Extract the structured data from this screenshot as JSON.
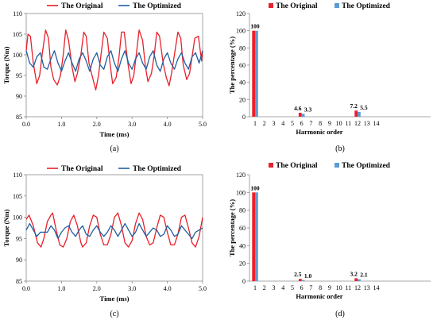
{
  "colors": {
    "original": "#e8202a",
    "optimized": "#1f5f9e",
    "bar_original": "#e8202a",
    "bar_optimized": "#5b9bd5"
  },
  "chart_data": [
    {
      "id": "a",
      "panel_label": "(a)",
      "type": "line",
      "xlabel": "Time (ms)",
      "ylabel": "Torque (Nm)",
      "xlim": [
        0,
        5
      ],
      "ylim": [
        85,
        110
      ],
      "xticks": [
        "0.0",
        "1.0",
        "2.0",
        "3.0",
        "4.0",
        "5.0"
      ],
      "yticks": [
        "85",
        "90",
        "95",
        "100",
        "105",
        "110"
      ],
      "legend": "top",
      "grid": false,
      "series": [
        {
          "name": "The Original",
          "color_key": "original",
          "x": [
            0,
            0.05,
            0.12,
            0.2,
            0.3,
            0.38,
            0.45,
            0.55,
            0.63,
            0.7,
            0.78,
            0.88,
            0.97,
            1.05,
            1.12,
            1.2,
            1.3,
            1.38,
            1.45,
            1.55,
            1.63,
            1.7,
            1.78,
            1.88,
            1.97,
            2.05,
            2.12,
            2.2,
            2.3,
            2.38,
            2.45,
            2.55,
            2.63,
            2.7,
            2.78,
            2.88,
            2.97,
            3.05,
            3.12,
            3.2,
            3.3,
            3.38,
            3.45,
            3.55,
            3.63,
            3.7,
            3.78,
            3.88,
            3.97,
            4.05,
            4.12,
            4.2,
            4.3,
            4.38,
            4.45,
            4.55,
            4.63,
            4.7,
            4.78,
            4.88,
            4.97,
            5.0
          ],
          "y": [
            101,
            105,
            104.5,
            98,
            93,
            95,
            100,
            106,
            104,
            97,
            94,
            92.7,
            95,
            100,
            106,
            103.5,
            97,
            93.5,
            95.5,
            100,
            105.5,
            104.5,
            98,
            94.5,
            91.5,
            95,
            100,
            105.5,
            104,
            97.5,
            93,
            94.5,
            99.5,
            105.5,
            105.5,
            98,
            93,
            95,
            100,
            106,
            103.5,
            97,
            93.5,
            95.5,
            100,
            105.5,
            104.5,
            98,
            94.5,
            92.5,
            95.5,
            100,
            105.5,
            104,
            97.5,
            94,
            95.5,
            99.5,
            104,
            104.5,
            98.5,
            101
          ]
        },
        {
          "name": "The Optimized",
          "color_key": "optimized",
          "x": [
            0,
            0.1,
            0.2,
            0.3,
            0.4,
            0.5,
            0.6,
            0.7,
            0.8,
            0.9,
            1.0,
            1.1,
            1.2,
            1.3,
            1.4,
            1.5,
            1.6,
            1.7,
            1.8,
            1.9,
            2.0,
            2.1,
            2.2,
            2.3,
            2.4,
            2.5,
            2.6,
            2.7,
            2.8,
            2.9,
            3.0,
            3.1,
            3.2,
            3.3,
            3.4,
            3.5,
            3.6,
            3.7,
            3.8,
            3.9,
            4.0,
            4.1,
            4.2,
            4.3,
            4.4,
            4.5,
            4.6,
            4.7,
            4.8,
            4.9,
            5.0
          ],
          "y": [
            101,
            98,
            97,
            99.5,
            100.5,
            97,
            96.5,
            99,
            101,
            98,
            96,
            98.5,
            100.5,
            98,
            96,
            99,
            100.5,
            98.5,
            96,
            99,
            100.5,
            97.5,
            96.5,
            99.5,
            101,
            98,
            96,
            99,
            101,
            98,
            96.5,
            99,
            100.5,
            98,
            96.5,
            99.5,
            101,
            97.5,
            96,
            99,
            100.5,
            98,
            96.5,
            99,
            100.5,
            98,
            96.5,
            99.5,
            100.5,
            98,
            101
          ]
        }
      ]
    },
    {
      "id": "b",
      "panel_label": "(b)",
      "type": "bar",
      "xlabel": "Harmonic order",
      "ylabel": "The percentage (%)",
      "ylim": [
        0,
        120
      ],
      "yticks": [
        "0",
        "20",
        "40",
        "60",
        "80",
        "100",
        "120"
      ],
      "categories": [
        "1",
        "2",
        "3",
        "4",
        "5",
        "6",
        "7",
        "8",
        "9",
        "10",
        "11",
        "12",
        "13",
        "14"
      ],
      "legend": "top",
      "grid": false,
      "series": [
        {
          "name": "The Original",
          "color_key": "bar_original",
          "values": [
            100,
            0,
            0,
            0,
            0,
            4.6,
            0,
            0,
            0,
            0,
            0,
            7.2,
            0,
            0
          ]
        },
        {
          "name": "The Optimized",
          "color_key": "bar_optimized",
          "values": [
            100,
            0,
            0,
            0,
            0,
            3.3,
            0,
            0,
            0,
            0,
            0,
            5.5,
            0,
            0
          ]
        }
      ],
      "data_labels": [
        {
          "category": "1",
          "text": "100"
        },
        {
          "category": "6",
          "text": "4.6"
        },
        {
          "category": "6",
          "text": "3.3"
        },
        {
          "category": "12",
          "text": "7.2"
        },
        {
          "category": "12",
          "text": "5.5"
        }
      ]
    },
    {
      "id": "c",
      "panel_label": "(c)",
      "type": "line",
      "xlabel": "Time (ms)",
      "ylabel": "Torque (Nm)",
      "xlim": [
        0,
        5
      ],
      "ylim": [
        85,
        110
      ],
      "xticks": [
        "0.0",
        "1.0",
        "2.0",
        "3.0",
        "4.0",
        "5.0"
      ],
      "yticks": [
        "85",
        "90",
        "95",
        "100",
        "105",
        "110"
      ],
      "legend": "top",
      "grid": false,
      "series": [
        {
          "name": "The Original",
          "color_key": "original",
          "x": [
            0,
            0.08,
            0.2,
            0.32,
            0.42,
            0.5,
            0.6,
            0.7,
            0.75,
            0.85,
            0.95,
            1.05,
            1.15,
            1.25,
            1.35,
            1.45,
            1.55,
            1.6,
            1.7,
            1.8,
            1.9,
            2.0,
            2.1,
            2.2,
            2.3,
            2.4,
            2.5,
            2.6,
            2.7,
            2.8,
            2.9,
            3.0,
            3.1,
            3.2,
            3.3,
            3.4,
            3.5,
            3.6,
            3.7,
            3.8,
            3.9,
            4.0,
            4.1,
            4.2,
            4.3,
            4.4,
            4.5,
            4.6,
            4.7,
            4.8,
            4.9,
            5.0
          ],
          "y": [
            99.5,
            100.5,
            98,
            94,
            93,
            95,
            99,
            100.5,
            101,
            97,
            93.5,
            93,
            95,
            99,
            100.5,
            98,
            94,
            93,
            94,
            98,
            100.5,
            100,
            96,
            93.5,
            93.5,
            96,
            100,
            101,
            98,
            94,
            93,
            94.5,
            98.5,
            101,
            99.5,
            95.5,
            93.5,
            94,
            97.5,
            100.5,
            100,
            96.5,
            93.5,
            93.5,
            96,
            100,
            100.5,
            97.5,
            94,
            93,
            95.5,
            100
          ]
        },
        {
          "name": "The Optimized",
          "color_key": "optimized",
          "x": [
            0,
            0.1,
            0.2,
            0.3,
            0.4,
            0.5,
            0.6,
            0.7,
            0.8,
            0.9,
            1.0,
            1.1,
            1.2,
            1.3,
            1.4,
            1.5,
            1.6,
            1.7,
            1.8,
            1.9,
            2.0,
            2.1,
            2.2,
            2.3,
            2.4,
            2.5,
            2.6,
            2.7,
            2.8,
            2.9,
            3.0,
            3.1,
            3.2,
            3.3,
            3.4,
            3.5,
            3.6,
            3.7,
            3.8,
            3.9,
            4.0,
            4.1,
            4.2,
            4.3,
            4.4,
            4.5,
            4.6,
            4.7,
            4.8,
            4.9,
            5.0
          ],
          "y": [
            97,
            98.5,
            97,
            95.5,
            96.5,
            96.5,
            96.5,
            98,
            97,
            95,
            96.5,
            97.5,
            98,
            96.5,
            95.5,
            97,
            98,
            96,
            95.5,
            97,
            98,
            96.5,
            95.5,
            96.5,
            98,
            97,
            95.5,
            97,
            98.5,
            97,
            95.5,
            96.5,
            98.5,
            97,
            95.5,
            96.5,
            97.5,
            97,
            95.5,
            96,
            98,
            97,
            95.5,
            96,
            98,
            97,
            96,
            95,
            96.5,
            97,
            97.5
          ]
        }
      ]
    },
    {
      "id": "d",
      "panel_label": "(d)",
      "type": "bar",
      "xlabel": "Harmonic order",
      "ylabel": "The percentage (%)",
      "ylim": [
        0,
        120
      ],
      "yticks": [
        "0",
        "20",
        "40",
        "60",
        "80",
        "100",
        "120"
      ],
      "categories": [
        "1",
        "2",
        "3",
        "4",
        "5",
        "6",
        "7",
        "8",
        "9",
        "10",
        "11",
        "12",
        "13",
        "14"
      ],
      "legend": "top",
      "grid": false,
      "series": [
        {
          "name": "The Original",
          "color_key": "bar_original",
          "values": [
            100,
            0,
            0,
            0,
            0,
            2.5,
            0,
            0,
            0,
            0,
            0,
            3.2,
            0,
            0
          ]
        },
        {
          "name": "The Optimized",
          "color_key": "bar_optimized",
          "values": [
            100,
            0,
            0,
            0,
            0,
            1.0,
            0,
            0,
            0,
            0,
            0,
            2.1,
            0,
            0
          ]
        }
      ],
      "data_labels": [
        {
          "category": "1",
          "text": "100"
        },
        {
          "category": "6",
          "text": "2.5"
        },
        {
          "category": "6",
          "text": "1.0"
        },
        {
          "category": "12",
          "text": "3.2"
        },
        {
          "category": "12",
          "text": "2.1"
        }
      ]
    }
  ]
}
